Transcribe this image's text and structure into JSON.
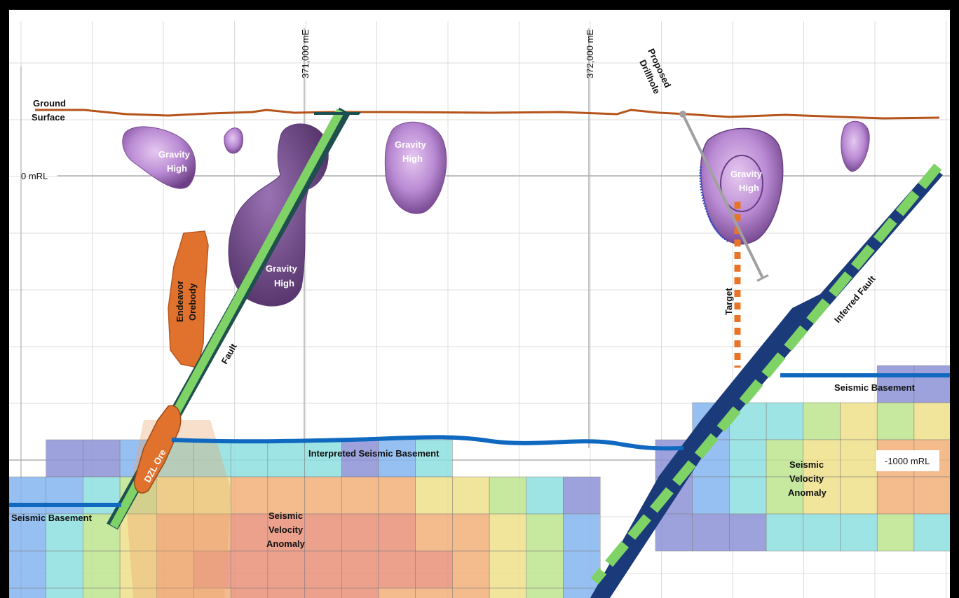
{
  "figure": {
    "eastings": [
      "371,000 mE",
      "372,000 mE"
    ],
    "rl_labels": [
      "0 mRL",
      "-1000 mRL"
    ],
    "ground_surface": [
      "Ground",
      "Surface"
    ],
    "proposed_drillhole": [
      "Proposed",
      "Drillhole"
    ],
    "target": "Target",
    "gravity_high": [
      "Gravity",
      "High"
    ],
    "endeavor_orebody": [
      "Endeavor",
      "Orebody"
    ],
    "fault": "Fault",
    "inferred_fault": "Inferred Fault",
    "dzl_ore": "DZL Ore",
    "interpreted_seismic_basement": "Interpreted Seismic Basement",
    "seismic_basement": "Seismic Basement",
    "seismic_velocity_anomaly": [
      "Seismic",
      "Velocity",
      "Anomaly"
    ]
  },
  "colors": {
    "ground_surface": "#b5531a",
    "seismic_basement": "#1069c0",
    "fault": "#7ed266",
    "inferred_fault_body": "#1b3a7a",
    "orebody": "#e0722d",
    "target": "#e8742a",
    "gravity_body": "#b88bd0",
    "drillhole": "#a0a0a0"
  }
}
